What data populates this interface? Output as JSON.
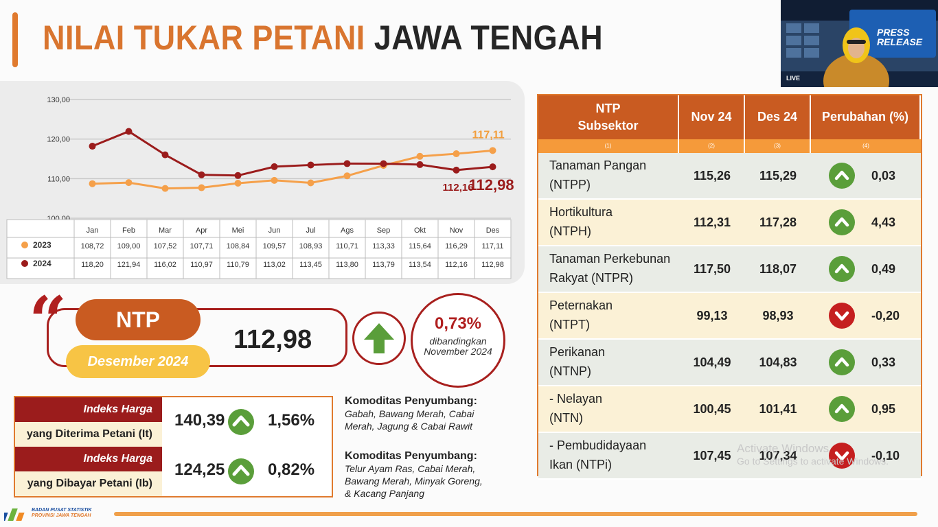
{
  "title": {
    "part1": "NILAI TUKAR PETANI",
    "part2": "JAWA TENGAH"
  },
  "chart_data": {
    "type": "line",
    "categories": [
      "Jan",
      "Feb",
      "Mar",
      "Apr",
      "Mei",
      "Jun",
      "Jul",
      "Ags",
      "Sep",
      "Okt",
      "Nov",
      "Des"
    ],
    "series": [
      {
        "name": "2023",
        "color": "#f5a04a",
        "values": [
          108.72,
          109.0,
          107.52,
          107.71,
          108.84,
          109.57,
          108.93,
          110.71,
          113.33,
          115.64,
          116.29,
          117.11
        ]
      },
      {
        "name": "2024",
        "color": "#9b1c1c",
        "values": [
          118.2,
          121.94,
          116.02,
          110.97,
          110.79,
          113.02,
          113.45,
          113.8,
          113.79,
          113.54,
          112.16,
          112.98
        ]
      }
    ],
    "yticks": [
      "100,00",
      "110,00",
      "120,00",
      "130,00"
    ],
    "ylim": [
      100,
      130
    ],
    "table_values": {
      "2023": [
        "108,72",
        "109,00",
        "107,52",
        "107,71",
        "108,84",
        "109,57",
        "108,93",
        "110,71",
        "113,33",
        "115,64",
        "116,29",
        "117,11"
      ],
      "2024": [
        "118,20",
        "121,94",
        "116,02",
        "110,97",
        "110,79",
        "113,02",
        "113,45",
        "113,80",
        "113,79",
        "113,54",
        "112,16",
        "112,98"
      ]
    },
    "annotations": {
      "end_2023": "117,11",
      "nov_2024": "112,16",
      "end_2024": "112,98"
    },
    "legend_placement": "bottom-table",
    "grid": true
  },
  "ntp": {
    "label": "NTP",
    "period": "Desember 2024",
    "value": "112,98",
    "change": "0,73%",
    "compare_line1": "dibandingkan",
    "compare_line2": "November 2024"
  },
  "indices": [
    {
      "label_top": "Indeks Harga",
      "label_bottom": "yang Diterima Petani (It)",
      "value": "140,39",
      "direction": "up",
      "change": "1,56%"
    },
    {
      "label_top": "Indeks Harga",
      "label_bottom": "yang Dibayar Petani (Ib)",
      "value": "124,25",
      "direction": "up",
      "change": "0,82%"
    }
  ],
  "komoditas": [
    {
      "title": "Komoditas Penyumbang:",
      "lines": [
        "Gabah, Bawang Merah, Cabai",
        "Merah, Jagung & Cabai Rawit"
      ]
    },
    {
      "title": "Komoditas Penyumbang:",
      "lines": [
        "Telur Ayam Ras, Cabai Merah,",
        "Bawang Merah, Minyak Goreng,",
        "& Kacang Panjang"
      ]
    }
  ],
  "table": {
    "headers": {
      "col1_line1": "NTP",
      "col1_line2": "Subsektor",
      "col2": "Nov 24",
      "col3": "Des 24",
      "col4": "Perubahan (%)"
    },
    "subheaders": [
      "(1)",
      "(2)",
      "(3)",
      "(4)"
    ],
    "rows": [
      {
        "line1": "Tanaman Pangan",
        "line2": "(NTPP)",
        "nov": "115,26",
        "des": "115,29",
        "direction": "up",
        "change": "0,03"
      },
      {
        "line1": "Hortikultura",
        "line2": "(NTPH)",
        "nov": "112,31",
        "des": "117,28",
        "direction": "up",
        "change": "4,43"
      },
      {
        "line1": "Tanaman Perkebunan",
        "line2": "Rakyat (NTPR)",
        "nov": "117,50",
        "des": "118,07",
        "direction": "up",
        "change": "0,49"
      },
      {
        "line1": "Peternakan",
        "line2": "(NTPT)",
        "nov": "99,13",
        "des": "98,93",
        "direction": "down",
        "change": "-0,20"
      },
      {
        "line1": "Perikanan",
        "line2": "(NTNP)",
        "nov": "104,49",
        "des": "104,83",
        "direction": "up",
        "change": "0,33"
      },
      {
        "line1": "- Nelayan",
        "line2": "(NTN)",
        "nov": "100,45",
        "des": "101,41",
        "direction": "up",
        "change": "0,95"
      },
      {
        "line1": "- Pembudidayaan",
        "line2": "Ikan (NTPi)",
        "nov": "107,45",
        "des": "107,34",
        "direction": "down",
        "change": "-0,10"
      }
    ]
  },
  "footer": {
    "org_line1": "BADAN PUSAT STATISTIK",
    "org_line2": "PROVINSI JAWA TENGAH"
  },
  "webcam": {
    "banner_line1": "PRESS",
    "banner_line2": "RELEASE",
    "live": "LIVE"
  },
  "watermark": {
    "line1": "Activate Windows",
    "line2": "Go to Settings to activate Windows."
  },
  "icons": {
    "up": "chevron-up-icon",
    "down": "chevron-down-icon",
    "big": "arrow-up-icon"
  }
}
